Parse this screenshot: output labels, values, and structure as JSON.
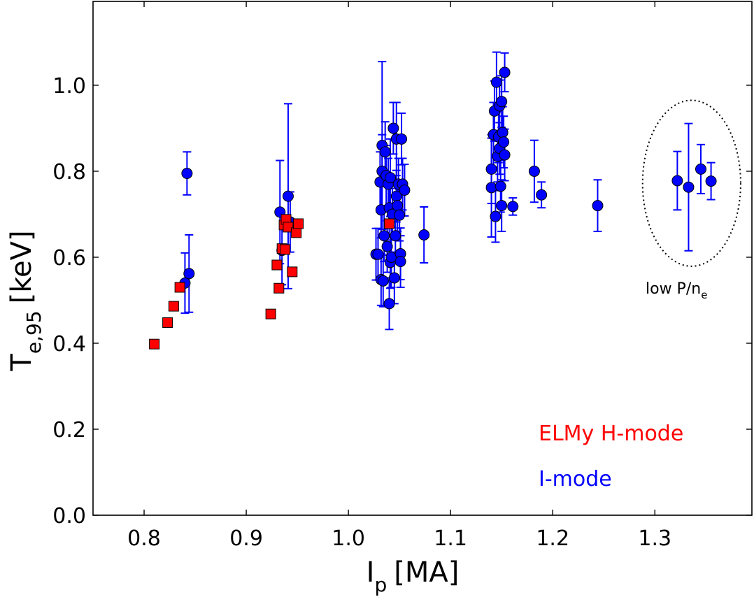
{
  "chart_data": {
    "type": "scatter",
    "xlabel": "I",
    "xlabel_sub": "p",
    "xlabel_unit": "[MA]",
    "ylabel": "T",
    "ylabel_sub": "e,95",
    "ylabel_unit": "[keV]",
    "xlim": [
      0.75,
      1.395
    ],
    "ylim": [
      0.0,
      1.195
    ],
    "x_ticks": [
      0.8,
      0.9,
      1.0,
      1.1,
      1.2,
      1.3
    ],
    "x_tick_labels": [
      "0.8",
      "0.9",
      "1.0",
      "1.1",
      "1.2",
      "1.3"
    ],
    "y_ticks": [
      0.0,
      0.2,
      0.4,
      0.6,
      0.8,
      1.0
    ],
    "y_tick_labels": [
      "0.0",
      "0.2",
      "0.4",
      "0.6",
      "0.8",
      "1.0"
    ],
    "grid": false,
    "legend_placement": "bottom-right",
    "annotation": {
      "text": "low P/n",
      "sub": "e",
      "center": [
        1.336,
        0.772
      ],
      "x_radius": 0.048,
      "y_radius": 0.193
    },
    "series": [
      {
        "name": "ELMy H-mode",
        "color": "#ff0000",
        "marker": "square",
        "points": [
          [
            0.81,
            0.398
          ],
          [
            0.823,
            0.448
          ],
          [
            0.829,
            0.486
          ],
          [
            0.835,
            0.53
          ],
          [
            0.924,
            0.468
          ],
          [
            0.93,
            0.582
          ],
          [
            0.932,
            0.528
          ],
          [
            0.935,
            0.62
          ],
          [
            0.937,
            0.675
          ],
          [
            0.938,
            0.618
          ],
          [
            0.939,
            0.688
          ],
          [
            0.941,
            0.67
          ],
          [
            0.945,
            0.566
          ],
          [
            0.949,
            0.657
          ],
          [
            0.951,
            0.678
          ],
          [
            1.04,
            0.678
          ]
        ]
      },
      {
        "name": "I-mode",
        "color": "#0000ff",
        "marker": "circle",
        "points": [
          [
            0.84,
            0.54,
            0.07
          ],
          [
            0.842,
            0.795,
            0.05
          ],
          [
            0.844,
            0.562,
            0.09
          ],
          [
            0.933,
            0.705,
            0.12
          ],
          [
            0.935,
            0.616,
            0.08
          ],
          [
            0.941,
            0.742,
            0.215
          ],
          [
            0.943,
            0.682,
            0.07
          ],
          [
            1.027,
            0.607,
            0.06
          ],
          [
            1.029,
            0.607,
            0.06
          ],
          [
            1.031,
            0.775,
            0.07
          ],
          [
            1.032,
            0.548,
            0.06
          ],
          [
            1.032,
            0.71,
            0.065
          ],
          [
            1.033,
            0.86,
            0.195
          ],
          [
            1.033,
            0.8,
            0.085
          ],
          [
            1.034,
            0.545,
            0.06
          ],
          [
            1.035,
            0.65,
            0.06
          ],
          [
            1.036,
            0.845,
            0.07
          ],
          [
            1.037,
            0.79,
            0.07
          ],
          [
            1.038,
            0.625,
            0.06
          ],
          [
            1.039,
            0.77,
            0.06
          ],
          [
            1.04,
            0.715,
            0.065
          ],
          [
            1.04,
            0.492,
            0.06
          ],
          [
            1.041,
            0.588,
            0.06
          ],
          [
            1.041,
            0.785,
            0.09
          ],
          [
            1.042,
            0.6,
            0.07
          ],
          [
            1.043,
            0.7,
            0.06
          ],
          [
            1.044,
            0.9,
            0.06
          ],
          [
            1.045,
            0.552,
            0.06
          ],
          [
            1.046,
            0.65,
            0.06
          ],
          [
            1.047,
            0.742,
            0.06
          ],
          [
            1.047,
            0.875,
            0.085
          ],
          [
            1.048,
            0.72,
            0.06
          ],
          [
            1.049,
            0.77,
            0.06
          ],
          [
            1.05,
            0.698,
            0.06
          ],
          [
            1.051,
            0.608,
            0.06
          ],
          [
            1.051,
            0.59,
            0.06
          ],
          [
            1.052,
            0.875,
            0.06
          ],
          [
            1.053,
            0.77,
            0.06
          ],
          [
            1.055,
            0.756,
            0.06
          ],
          [
            1.074,
            0.652,
            0.065
          ],
          [
            1.14,
            0.805,
            0.08
          ],
          [
            1.14,
            0.762,
            0.115
          ],
          [
            1.142,
            0.885,
            0.075
          ],
          [
            1.143,
            0.94,
            0.07
          ],
          [
            1.144,
            0.695,
            0.06
          ],
          [
            1.145,
            1.007,
            0.07
          ],
          [
            1.146,
            0.835,
            0.06
          ],
          [
            1.147,
            0.88,
            0.06
          ],
          [
            1.148,
            0.853,
            0.06
          ],
          [
            1.148,
            0.952,
            0.06
          ],
          [
            1.149,
            0.765,
            0.06
          ],
          [
            1.15,
            0.962,
            0.06
          ],
          [
            1.15,
            0.72,
            0.06
          ],
          [
            1.151,
            0.89,
            0.06
          ],
          [
            1.152,
            0.868,
            0.06
          ],
          [
            1.153,
            1.03,
            0.045
          ],
          [
            1.153,
            0.838,
            0.06
          ],
          [
            1.161,
            0.718,
            0.02
          ],
          [
            1.182,
            0.8,
            0.072
          ],
          [
            1.189,
            0.745,
            0.03
          ],
          [
            1.244,
            0.72,
            0.06
          ],
          [
            1.322,
            0.778,
            0.068
          ],
          [
            1.333,
            0.763,
            0.148
          ],
          [
            1.345,
            0.805,
            0.057
          ],
          [
            1.355,
            0.777,
            0.043
          ]
        ]
      }
    ]
  }
}
